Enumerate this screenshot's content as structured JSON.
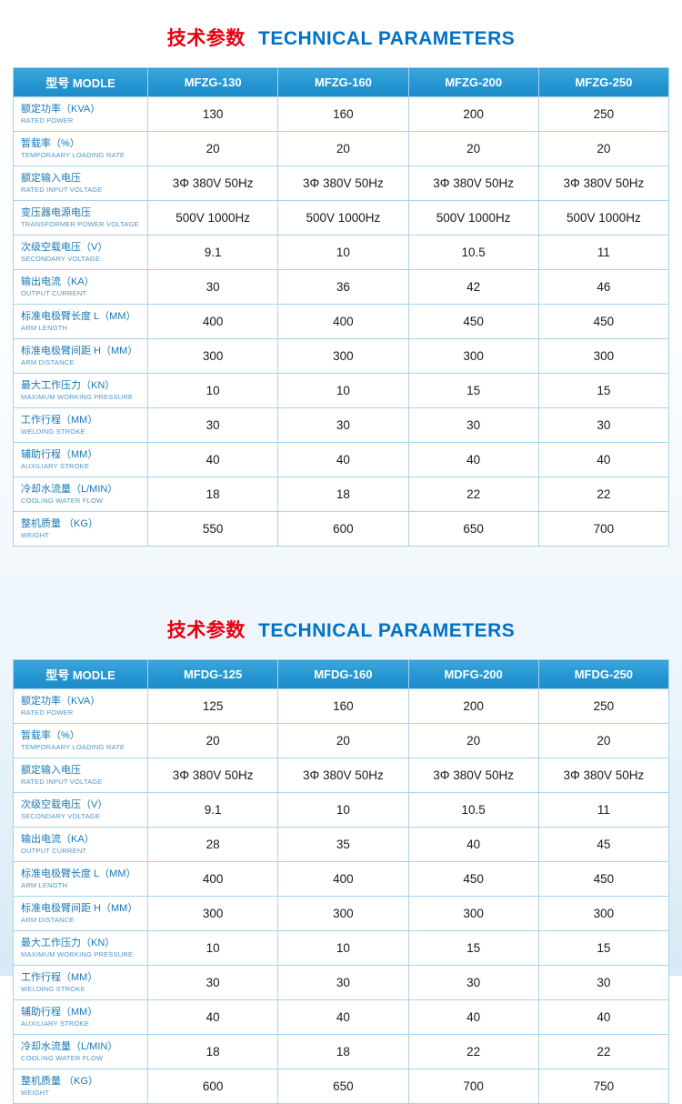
{
  "section_title": {
    "cn": "技术参数",
    "en": "TECHNICAL PARAMETERS"
  },
  "colors": {
    "title_red": "#e60012",
    "title_blue": "#0072c6",
    "header_blue": "#2496d1",
    "border_blue": "#a7d3ea",
    "label_blue": "#1778b6"
  },
  "tables": [
    {
      "header": {
        "model_label": "型号 MODLE",
        "models": [
          "MFZG-130",
          "MFZG-160",
          "MFZG-200",
          "MFZG-250"
        ]
      },
      "rows": [
        {
          "cn": "额定功率（KVA）",
          "en": "RATED POWER",
          "values": [
            "130",
            "160",
            "200",
            "250"
          ]
        },
        {
          "cn": "暂载率（%）",
          "en": "TEMPORAARY LOADING RATE",
          "values": [
            "20",
            "20",
            "20",
            "20"
          ]
        },
        {
          "cn": "额定输入电压",
          "en": "RATED INPUT VOLTAGE",
          "values": [
            "3Φ 380V  50Hz",
            "3Φ 380V  50Hz",
            "3Φ 380V  50Hz",
            "3Φ 380V  50Hz"
          ]
        },
        {
          "cn": "变压器电源电压",
          "en": "TRANSFORMER POWER VOLTAGE",
          "values": [
            "500V  1000Hz",
            "500V  1000Hz",
            "500V  1000Hz",
            "500V  1000Hz"
          ]
        },
        {
          "cn": "次级空载电压（V）",
          "en": "SECONDARY VOLTAGE",
          "values": [
            "9.1",
            "10",
            "10.5",
            "11"
          ]
        },
        {
          "cn": "输出电流（KA）",
          "en": "OUTPUT CURRENT",
          "values": [
            "30",
            "36",
            "42",
            "46"
          ]
        },
        {
          "cn": "标准电极臂长度 L（MM）",
          "en": "ARM LENGTH",
          "values": [
            "400",
            "400",
            "450",
            "450"
          ]
        },
        {
          "cn": "标准电极臂间距 H（MM）",
          "en": "ARM DISTANCE",
          "values": [
            "300",
            "300",
            "300",
            "300"
          ]
        },
        {
          "cn": "最大工作压力（KN）",
          "en": "MAXIMUM WORKING PRESSURE",
          "values": [
            "10",
            "10",
            "15",
            "15"
          ]
        },
        {
          "cn": "工作行程（MM）",
          "en": "WELDING STROKE",
          "values": [
            "30",
            "30",
            "30",
            "30"
          ]
        },
        {
          "cn": "辅助行程（MM）",
          "en": "AUXILIARY STROKE",
          "values": [
            "40",
            "40",
            "40",
            "40"
          ]
        },
        {
          "cn": "冷却水流量（L/MIN）",
          "en": "COOLING WATER FLOW",
          "values": [
            "18",
            "18",
            "22",
            "22"
          ]
        },
        {
          "cn": "整机质量 （KG）",
          "en": "WEIGHT",
          "values": [
            "550",
            "600",
            "650",
            "700"
          ]
        }
      ]
    },
    {
      "header": {
        "model_label": "型号 MODLE",
        "models": [
          "MFDG-125",
          "MFDG-160",
          "MDFG-200",
          "MFDG-250"
        ]
      },
      "rows": [
        {
          "cn": "额定功率（KVA）",
          "en": "RATED POWER",
          "values": [
            "125",
            "160",
            "200",
            "250"
          ]
        },
        {
          "cn": "暂载率（%）",
          "en": "TEMPORAARY LOADING RATE",
          "values": [
            "20",
            "20",
            "20",
            "20"
          ]
        },
        {
          "cn": "额定输入电压",
          "en": "RATED INPUT VOLTAGE",
          "values": [
            "3Φ 380V  50Hz",
            "3Φ 380V  50Hz",
            "3Φ 380V  50Hz",
            "3Φ 380V  50Hz"
          ]
        },
        {
          "cn": "次级空载电压（V）",
          "en": "SECONDARY VOLTAGE",
          "values": [
            "9.1",
            "10",
            "10.5",
            "11"
          ]
        },
        {
          "cn": "输出电流（KA）",
          "en": "OUTPUT CURRENT",
          "values": [
            "28",
            "35",
            "40",
            "45"
          ]
        },
        {
          "cn": "标准电极臂长度 L（MM）",
          "en": "ARM LENGTH",
          "values": [
            "400",
            "400",
            "450",
            "450"
          ]
        },
        {
          "cn": "标准电极臂间距 H（MM）",
          "en": "ARM DISTANCE",
          "values": [
            "300",
            "300",
            "300",
            "300"
          ]
        },
        {
          "cn": "最大工作压力（KN）",
          "en": "MAXIMUM WORKING PRESSURE",
          "values": [
            "10",
            "10",
            "15",
            "15"
          ]
        },
        {
          "cn": "工作行程（MM）",
          "en": "WELDING STROKE",
          "values": [
            "30",
            "30",
            "30",
            "30"
          ]
        },
        {
          "cn": "辅助行程（MM）",
          "en": "AUXILIARY STROKE",
          "values": [
            "40",
            "40",
            "40",
            "40"
          ]
        },
        {
          "cn": "冷却水流量（L/MIN）",
          "en": "COOLING WATER FLOW",
          "values": [
            "18",
            "18",
            "22",
            "22"
          ]
        },
        {
          "cn": "整机质量 （KG）",
          "en": "WEIGHT",
          "values": [
            "600",
            "650",
            "700",
            "750"
          ]
        }
      ]
    }
  ]
}
